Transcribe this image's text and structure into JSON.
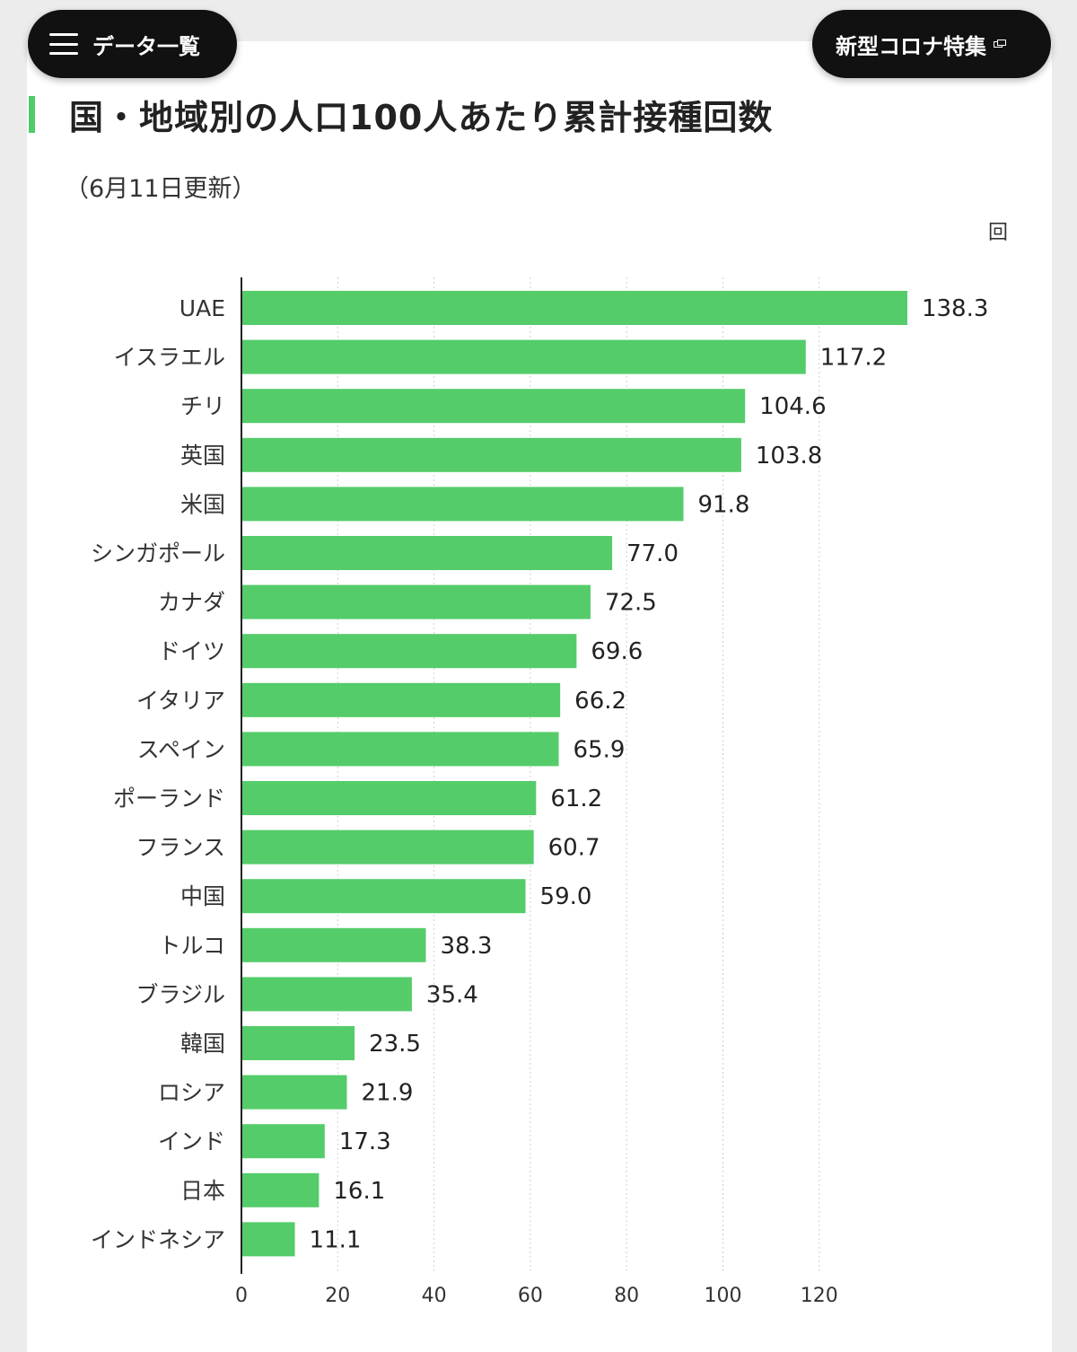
{
  "nav": {
    "data_menu_label": "データ一覧",
    "covid_feature_label": "新型コロナ特集"
  },
  "colors": {
    "bar": "#54cc6a",
    "accent": "#4ecb6a",
    "pill_bg": "#111111"
  },
  "chart_data": {
    "type": "bar",
    "orientation": "horizontal",
    "title": "国・地域別の人口100人あたり累計接種回数",
    "subtitle": "（6月11日更新）",
    "unit": "回",
    "categories": [
      "UAE",
      "イスラエル",
      "チリ",
      "英国",
      "米国",
      "シンガポール",
      "カナダ",
      "ドイツ",
      "イタリア",
      "スペイン",
      "ポーランド",
      "フランス",
      "中国",
      "トルコ",
      "ブラジル",
      "韓国",
      "ロシア",
      "インド",
      "日本",
      "インドネシア"
    ],
    "values": [
      138.3,
      117.2,
      104.6,
      103.8,
      91.8,
      77.0,
      72.5,
      69.6,
      66.2,
      65.9,
      61.2,
      60.7,
      59.0,
      38.3,
      35.4,
      23.5,
      21.9,
      17.3,
      16.1,
      11.1
    ],
    "value_labels": [
      "138.3",
      "117.2",
      "104.6",
      "103.8",
      "91.8",
      "77.0",
      "72.5",
      "69.6",
      "66.2",
      "65.9",
      "61.2",
      "60.7",
      "59.0",
      "38.3",
      "35.4",
      "23.5",
      "21.9",
      "17.3",
      "16.1",
      "11.1"
    ],
    "x_ticks": [
      0,
      20,
      40,
      60,
      80,
      100,
      120
    ],
    "xlim": [
      0,
      140
    ],
    "grid": true,
    "legend": "none"
  }
}
